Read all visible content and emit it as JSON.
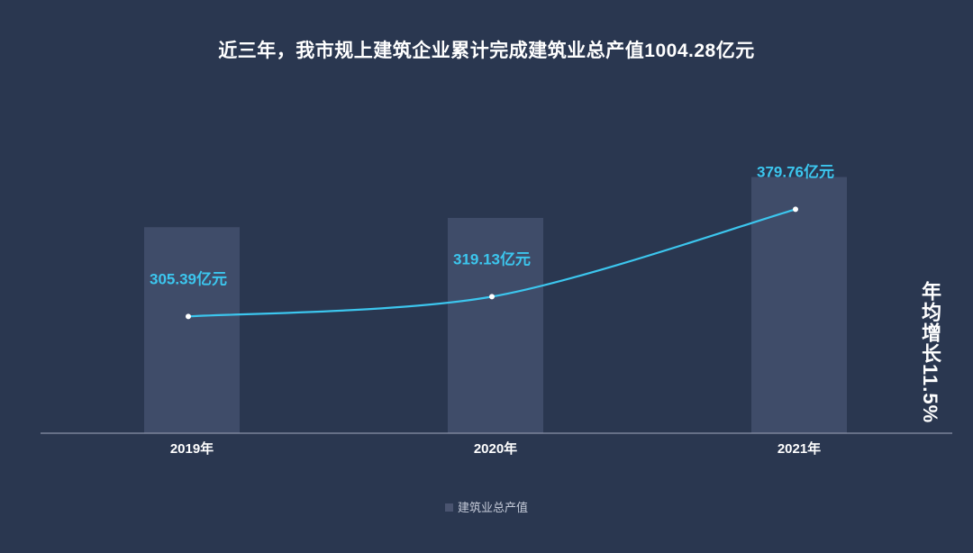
{
  "chart_data": {
    "type": "bar",
    "title": "近三年，我市规上建筑企业累计完成建筑业总产值1004.28亿元",
    "categories": [
      "2019年",
      "2020年",
      "2021年"
    ],
    "series": [
      {
        "name": "建筑业总产值",
        "type": "bar",
        "values": [
          305.39,
          319.13,
          379.76
        ],
        "color": "#3f4c69"
      },
      {
        "type": "line",
        "values": [
          305.39,
          319.13,
          379.76
        ],
        "labels": [
          "305.39亿元",
          "319.13亿元",
          "379.76亿元"
        ],
        "color": "#3cc6ee"
      }
    ],
    "annotation": "年均增长11.5%",
    "legend": {
      "position": "bottom",
      "entries": [
        "建筑业总产值"
      ]
    },
    "grid": false,
    "colors": {
      "background": "#2a3750",
      "bar": "#3f4c69",
      "line": "#3cc6ee",
      "axis": "#8a93a8",
      "text": "#ffffff"
    }
  }
}
